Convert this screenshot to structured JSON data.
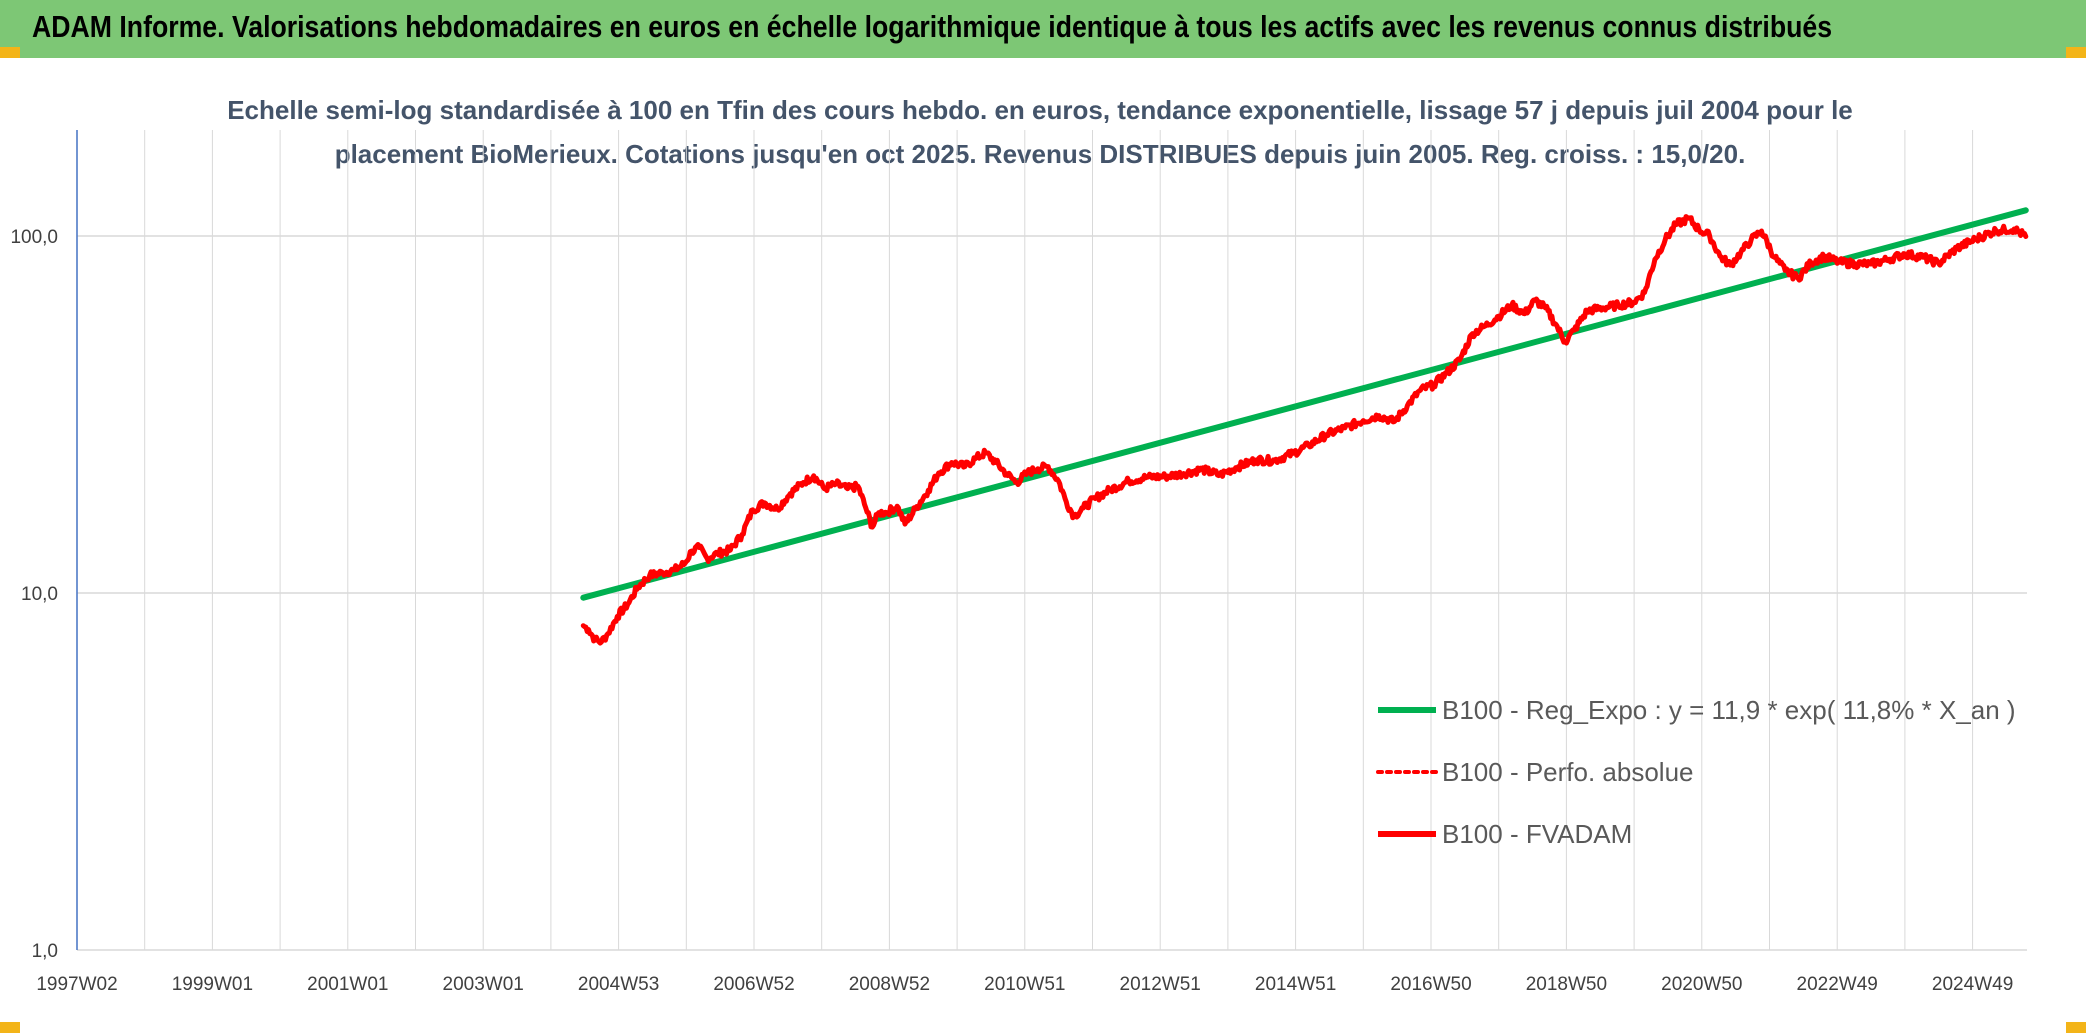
{
  "banner": {
    "title": "ADAM Informe. Valorisations hebdomadaires en euros en échelle logarithmique identique à tous les actifs avec les revenus connus distribués",
    "color": "#7dc775",
    "corner_color": "#f3b418"
  },
  "chart_data": {
    "type": "line",
    "title": "Echelle semi-log standardisée à 100 en Tfin des cours hebdo. en euros, tendance exponentielle, lissage 57 j depuis juil 2004 pour le placement BioMerieux. Cotations jusqu'en oct 2025. Revenus DISTRIBUES depuis juin 2005. Reg. croiss. : 15,0/20.",
    "x_scale": "weekly dates",
    "x_range": [
      "1997W02",
      "2025W43"
    ],
    "x_tick_labels": [
      "1997W02",
      "1999W01",
      "2001W01",
      "2003W01",
      "2004W53",
      "2006W52",
      "2008W52",
      "2010W51",
      "2012W51",
      "2014W51",
      "2016W50",
      "2018W50",
      "2020W50",
      "2022W49",
      "2024W49"
    ],
    "y_scale": "log",
    "ylim": [
      1,
      200
    ],
    "y_tick_labels": [
      "1,0",
      "10,0",
      "100,0"
    ],
    "grid": true,
    "legend_position": "bottom-right",
    "series": [
      {
        "name": "B100 - Reg_Expo : y = 11,9 * exp( 11,8% *  X_an )",
        "color": "#00b050",
        "style": "solid",
        "points": [
          [
            "2004W27",
            9.7
          ],
          [
            "2025W43",
            118.0
          ]
        ]
      },
      {
        "name": "B100 - Perfo. absolue",
        "color": "#ff0000",
        "style": "dotted",
        "points": []
      },
      {
        "name": "B100 - FVADAM",
        "color": "#ff0000",
        "style": "solid",
        "points": [
          [
            "2004W27",
            8.1
          ],
          [
            "2004W31",
            7.9
          ],
          [
            "2004W36",
            7.4
          ],
          [
            "2004W41",
            7.3
          ],
          [
            "2004W46",
            7.7
          ],
          [
            "2005W01",
            8.6
          ],
          [
            "2005W09",
            9.3
          ],
          [
            "2005W17",
            10.4
          ],
          [
            "2005W26",
            11.2
          ],
          [
            "2005W36",
            11.4
          ],
          [
            "2005W45",
            11.6
          ],
          [
            "2006W01",
            12.1
          ],
          [
            "2006W06",
            13.1
          ],
          [
            "2006W12",
            13.4
          ],
          [
            "2006W18",
            12.5
          ],
          [
            "2006W26",
            12.9
          ],
          [
            "2006W36",
            13.2
          ],
          [
            "2006W45",
            14.6
          ],
          [
            "2007W01",
            17.1
          ],
          [
            "2007W10",
            17.9
          ],
          [
            "2007W20",
            17.2
          ],
          [
            "2007W30",
            19.0
          ],
          [
            "2007W40",
            20.4
          ],
          [
            "2007W48",
            21.3
          ],
          [
            "2008W04",
            19.6
          ],
          [
            "2008W13",
            20.2
          ],
          [
            "2008W22",
            19.6
          ],
          [
            "2008W30",
            19.9
          ],
          [
            "2008W36",
            17.3
          ],
          [
            "2008W41",
            15.3
          ],
          [
            "2008W46",
            16.8
          ],
          [
            "2008W52",
            16.8
          ],
          [
            "2009W08",
            17.5
          ],
          [
            "2009W14",
            15.6
          ],
          [
            "2009W22",
            17.2
          ],
          [
            "2009W32",
            19.4
          ],
          [
            "2009W40",
            21.7
          ],
          [
            "2009W50",
            23.2
          ],
          [
            "2010W08",
            22.6
          ],
          [
            "2010W16",
            23.8
          ],
          [
            "2010W24",
            24.7
          ],
          [
            "2010W32",
            23.2
          ],
          [
            "2010W40",
            21.6
          ],
          [
            "2010W48",
            20.4
          ],
          [
            "2011W04",
            21.7
          ],
          [
            "2011W12",
            22.3
          ],
          [
            "2011W20",
            22.6
          ],
          [
            "2011W28",
            20.6
          ],
          [
            "2011W34",
            18.0
          ],
          [
            "2011W40",
            16.4
          ],
          [
            "2011W47",
            17.3
          ],
          [
            "2012W04",
            18.4
          ],
          [
            "2012W16",
            19.5
          ],
          [
            "2012W30",
            20.6
          ],
          [
            "2012W44",
            21.1
          ],
          [
            "2013W06",
            21.2
          ],
          [
            "2013W20",
            21.6
          ],
          [
            "2013W34",
            22.2
          ],
          [
            "2013W48",
            21.4
          ],
          [
            "2014W10",
            22.6
          ],
          [
            "2014W24",
            23.6
          ],
          [
            "2014W38",
            23.5
          ],
          [
            "2014W52",
            24.6
          ],
          [
            "2015W12",
            25.9
          ],
          [
            "2015W26",
            27.8
          ],
          [
            "2015W40",
            29.0
          ],
          [
            "2016W02",
            30.4
          ],
          [
            "2016W14",
            31.4
          ],
          [
            "2016W26",
            30.2
          ],
          [
            "2016W36",
            33.5
          ],
          [
            "2016W46",
            37.0
          ],
          [
            "2017W04",
            38.3
          ],
          [
            "2017W14",
            41.3
          ],
          [
            "2017W24",
            44.9
          ],
          [
            "2017W34",
            53.3
          ],
          [
            "2017W44",
            56.0
          ],
          [
            "2018W02",
            59.6
          ],
          [
            "2018W12",
            64.0
          ],
          [
            "2018W22",
            60.6
          ],
          [
            "2018W30",
            66.0
          ],
          [
            "2018W38",
            62.9
          ],
          [
            "2018W46",
            56.6
          ],
          [
            "2019W01",
            50.5
          ],
          [
            "2019W08",
            54.5
          ],
          [
            "2019W18",
            61.7
          ],
          [
            "2019W30",
            62.9
          ],
          [
            "2019W42",
            64.0
          ],
          [
            "2020W02",
            65.3
          ],
          [
            "2020W10",
            69.4
          ],
          [
            "2020W18",
            86.0
          ],
          [
            "2020W26",
            97.6
          ],
          [
            "2020W34",
            107.5
          ],
          [
            "2020W44",
            112.1
          ],
          [
            "2020W52",
            104.3
          ],
          [
            "2021W08",
            100.2
          ],
          [
            "2021W16",
            87.8
          ],
          [
            "2021W24",
            82.9
          ],
          [
            "2021W32",
            89.8
          ],
          [
            "2021W40",
            97.5
          ],
          [
            "2021W48",
            103.3
          ],
          [
            "2022W06",
            87.1
          ],
          [
            "2022W14",
            80.1
          ],
          [
            "2022W24",
            76.1
          ],
          [
            "2022W34",
            84.3
          ],
          [
            "2022W44",
            87.6
          ],
          [
            "2023W04",
            84.4
          ],
          [
            "2023W16",
            83.6
          ],
          [
            "2023W28",
            83.5
          ],
          [
            "2023W42",
            86.1
          ],
          [
            "2024W02",
            89.1
          ],
          [
            "2024W16",
            87.2
          ],
          [
            "2024W28",
            83.8
          ],
          [
            "2024W42",
            92.4
          ],
          [
            "2025W04",
            97.9
          ],
          [
            "2025W20",
            103.6
          ],
          [
            "2025W34",
            104.6
          ],
          [
            "2025W43",
            99.7
          ]
        ]
      }
    ]
  }
}
